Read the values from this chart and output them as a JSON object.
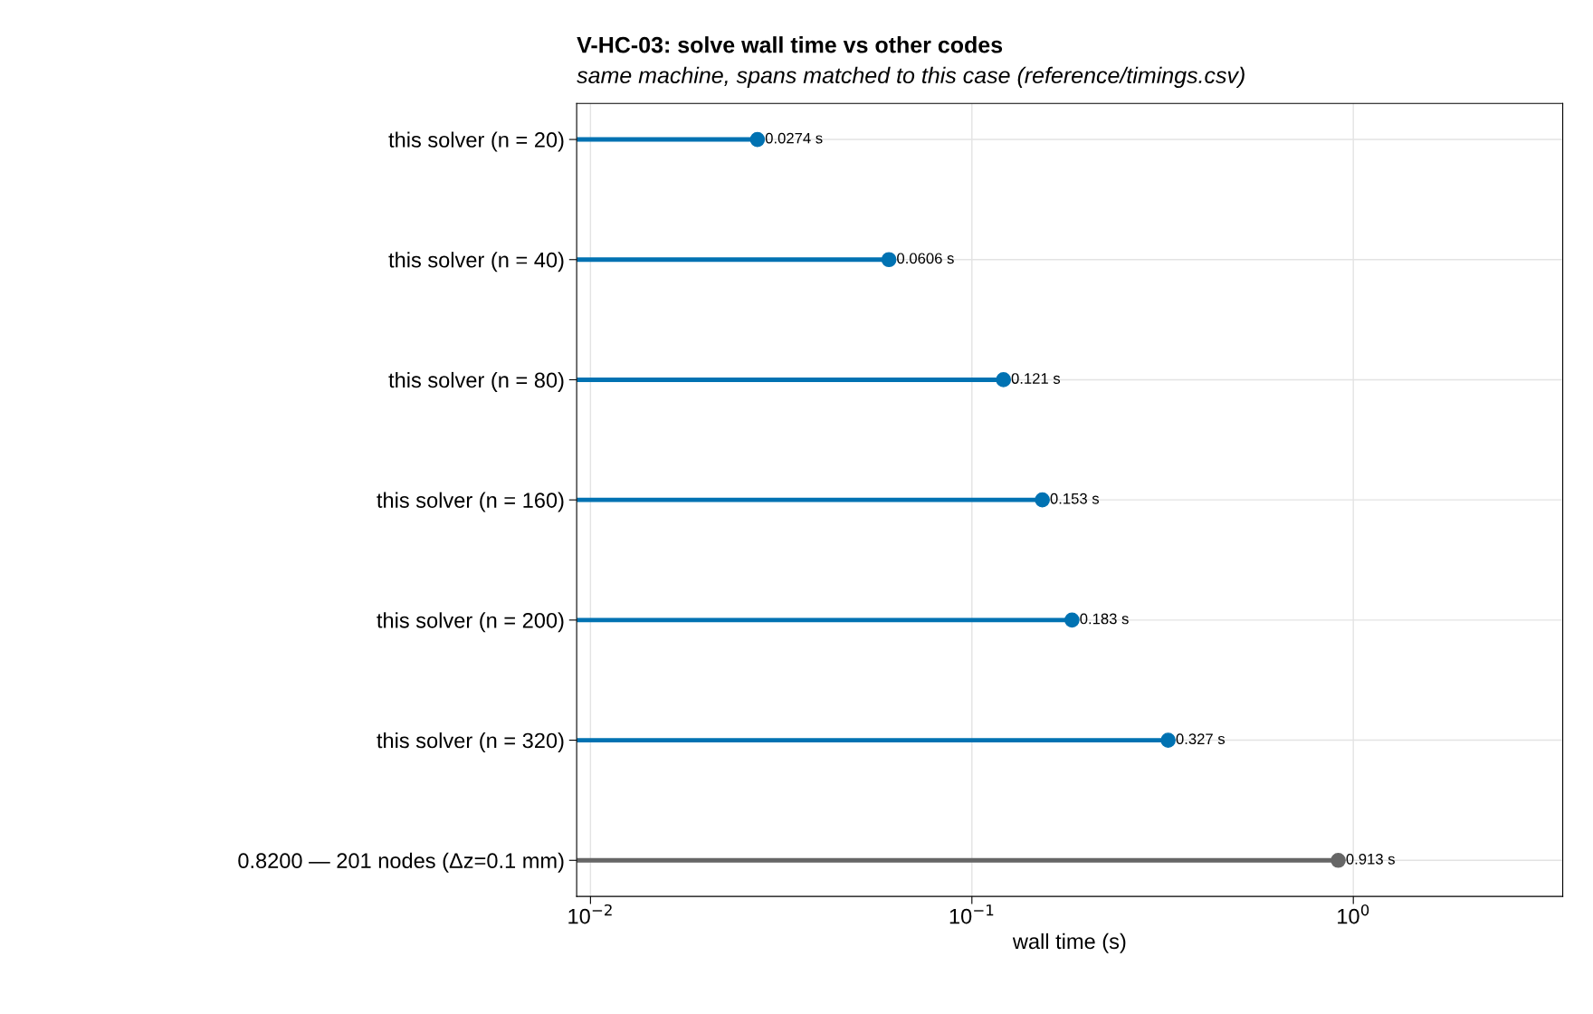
{
  "chart_data": {
    "type": "lollipop",
    "orientation": "horizontal",
    "title": "V-HC-03: solve wall time vs other codes",
    "subtitle": "same machine, spans matched to this case (reference/timings.csv)",
    "xlabel": "wall time (s)",
    "categories": [
      "this solver (n = 20)",
      "this solver (n = 40)",
      "this solver (n = 80)",
      "this solver (n = 160)",
      "this solver (n = 200)",
      "this solver (n = 320)",
      "0.8200 — 201 nodes (Δz=0.1 mm)"
    ],
    "values": [
      0.0274,
      0.0606,
      0.121,
      0.153,
      0.183,
      0.327,
      0.913
    ],
    "colors": [
      "#0072b2",
      "#0072b2",
      "#0072b2",
      "#0072b2",
      "#0072b2",
      "#0072b2",
      "#666666"
    ],
    "value_labels": [
      "0.0274 s",
      "0.0606 s",
      "0.121 s",
      "0.153 s",
      "0.183 s",
      "0.327 s",
      "0.913 s"
    ],
    "log": "x",
    "xlim": [
      0.0092,
      3.54
    ],
    "xticks": [
      {
        "value": 0.01,
        "label": "10$^{−2}$"
      },
      {
        "value": 0.1,
        "label": "10$^{−1}$"
      },
      {
        "value": 1,
        "label": "10$^{0}$"
      }
    ],
    "grid": true,
    "marker": "circle"
  }
}
